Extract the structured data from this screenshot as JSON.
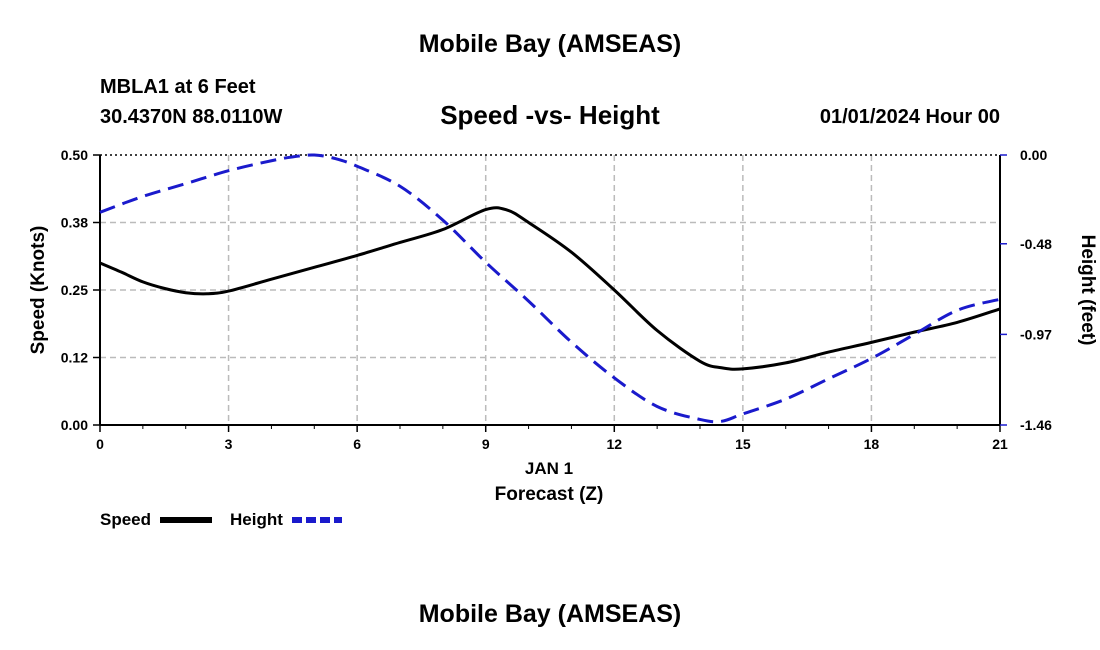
{
  "header": {
    "title": "Mobile Bay (AMSEAS)",
    "station": "MBLA1 at 6 Feet",
    "coords": "30.4370N  88.0110W",
    "subtitle": "Speed -vs- Height",
    "datetime": "01/01/2024 Hour 00"
  },
  "footer": {
    "title": "Mobile Bay (AMSEAS)"
  },
  "legend": {
    "speed_label": "Speed",
    "height_label": "Height"
  },
  "colors": {
    "speed": "#000000",
    "height": "#1a1acc",
    "grid": "#bbbbbb"
  },
  "chart_data": {
    "type": "line",
    "title": "Speed -vs- Height",
    "xlabel": "Forecast (Z)",
    "xsublabel": "JAN 1",
    "ylabel": "Speed (Knots)",
    "y2label": "Height (feet)",
    "xlim": [
      0,
      21
    ],
    "ylim": [
      0,
      0.5
    ],
    "y2lim": [
      -1.46,
      0.0
    ],
    "xticks": [
      0,
      3,
      6,
      9,
      12,
      15,
      18,
      21
    ],
    "xtick_labels": [
      "0",
      "3",
      "6",
      "9",
      "12",
      "15",
      "18",
      "21"
    ],
    "yticks": [
      0,
      0.125,
      0.25,
      0.375,
      0.5
    ],
    "ytick_labels": [
      "0.00",
      "0.12",
      "0.25",
      "0.38",
      "0.50"
    ],
    "y2ticks": [
      0,
      -0.48,
      -0.97,
      -1.46
    ],
    "y2tick_labels": [
      "0.00",
      "-0.48",
      "-0.97",
      "-1.46"
    ],
    "grid": true,
    "legend_position": "bottom-left",
    "series": [
      {
        "name": "Speed",
        "axis": "left",
        "style": "solid",
        "x": [
          0,
          0.5,
          1,
          1.5,
          2,
          2.5,
          3,
          4,
          5,
          6,
          7,
          8,
          9,
          9.5,
          10,
          11,
          12,
          13,
          14,
          14.5,
          15,
          16,
          17,
          18,
          19,
          20,
          21
        ],
        "y": [
          0.3,
          0.283,
          0.265,
          0.253,
          0.245,
          0.243,
          0.248,
          0.27,
          0.292,
          0.314,
          0.338,
          0.362,
          0.399,
          0.398,
          0.375,
          0.32,
          0.25,
          0.175,
          0.118,
          0.106,
          0.104,
          0.115,
          0.135,
          0.153,
          0.172,
          0.19,
          0.215
        ]
      },
      {
        "name": "Height",
        "axis": "right",
        "style": "dashed",
        "x": [
          0,
          1,
          2,
          3,
          4,
          4.5,
          5,
          5.5,
          6,
          7,
          8,
          9,
          10,
          11,
          12,
          13,
          14,
          14.5,
          15,
          16,
          17,
          18,
          19,
          20,
          21
        ],
        "y": [
          -0.31,
          -0.224,
          -0.155,
          -0.085,
          -0.031,
          -0.01,
          0.0,
          -0.02,
          -0.061,
          -0.169,
          -0.352,
          -0.58,
          -0.79,
          -1.012,
          -1.205,
          -1.36,
          -1.43,
          -1.44,
          -1.4,
          -1.32,
          -1.21,
          -1.1,
          -0.97,
          -0.84,
          -0.78
        ]
      }
    ]
  }
}
